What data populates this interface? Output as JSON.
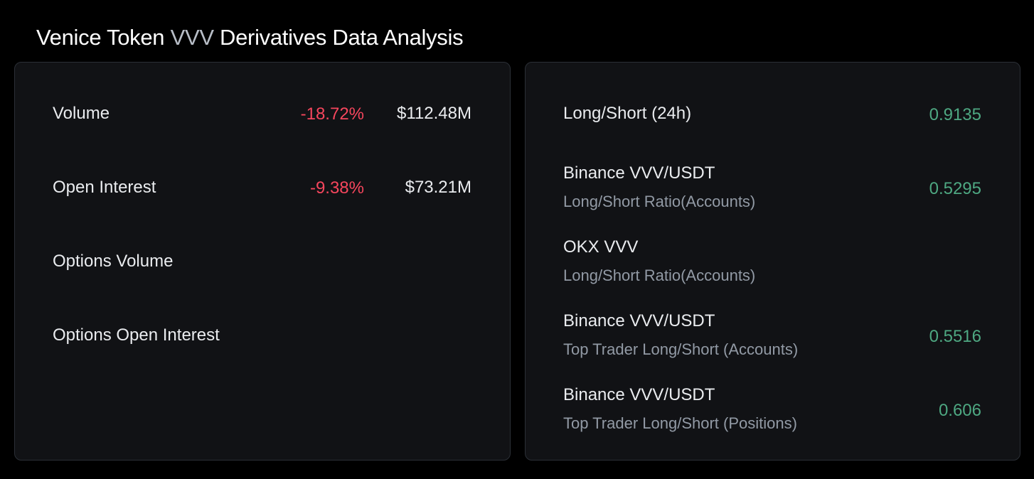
{
  "header": {
    "title_prefix": "Venice Token ",
    "title_symbol": "VVV",
    "title_suffix": " Derivatives Data Analysis"
  },
  "market_stats": [
    {
      "label": "Volume",
      "change": "-18.72%",
      "amount": "$112.48M"
    },
    {
      "label": "Open Interest",
      "change": "-9.38%",
      "amount": "$73.21M"
    },
    {
      "label": "Options Volume",
      "change": "",
      "amount": ""
    },
    {
      "label": "Options Open Interest",
      "change": "",
      "amount": ""
    }
  ],
  "ratios": [
    {
      "label": "Long/Short (24h)",
      "sublabel": "",
      "value": "0.9135"
    },
    {
      "label": "Binance VVV/USDT",
      "sublabel": "Long/Short Ratio(Accounts)",
      "value": "0.5295"
    },
    {
      "label": "OKX VVV",
      "sublabel": "Long/Short Ratio(Accounts)",
      "value": ""
    },
    {
      "label": "Binance VVV/USDT",
      "sublabel": "Top Trader Long/Short (Accounts)",
      "value": "0.5516"
    },
    {
      "label": "Binance VVV/USDT",
      "sublabel": "Top Trader Long/Short (Positions)",
      "value": "0.606"
    }
  ],
  "colors": {
    "background": "#000000",
    "card": "#111215",
    "negative": "#f6465d",
    "positive": "#4ea882"
  }
}
